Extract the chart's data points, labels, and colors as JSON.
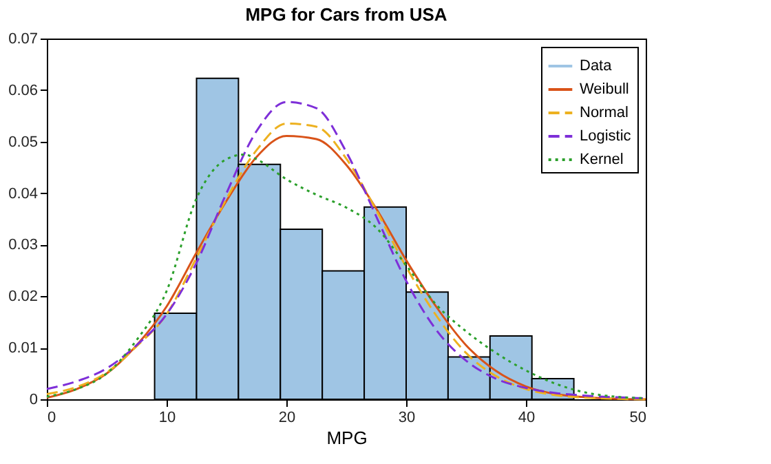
{
  "chart_data": {
    "type": "histogram",
    "title": "MPG for Cars from USA",
    "xlabel": "MPG",
    "xlim": [
      0,
      50
    ],
    "xticks": [
      0,
      10,
      20,
      30,
      40,
      50
    ],
    "ylim": [
      0,
      0.07
    ],
    "yticks": [
      0,
      0.01,
      0.02,
      0.03,
      0.04,
      0.05,
      0.06,
      0.07
    ],
    "grid": false,
    "legend": "top right",
    "series": [
      {
        "name": "Data",
        "color": "#9fc5e4",
        "bins": [
          9,
          12.5,
          16,
          19.5,
          23,
          26.5,
          30,
          33.5,
          37,
          40.5,
          44
        ],
        "values": [
          0.0167,
          0.0623,
          0.0456,
          0.033,
          0.0249,
          0.0373,
          0.0208,
          0.0082,
          0.0123,
          0.004
        ]
      },
      {
        "name": "Weibull",
        "type": "line",
        "color": "#d95319",
        "line_style": "solid",
        "x": [
          0,
          2.5,
          5,
          7.5,
          10,
          12.5,
          15,
          17.5,
          20,
          22.5,
          25,
          27.5,
          30,
          32.5,
          35,
          37.5,
          40,
          42.5,
          45,
          47.5,
          50
        ],
        "values": [
          0.0003,
          0.002,
          0.005,
          0.0105,
          0.018,
          0.0285,
          0.0385,
          0.047,
          0.0511,
          0.0505,
          0.0455,
          0.037,
          0.027,
          0.018,
          0.0105,
          0.0055,
          0.0025,
          0.001,
          0.0004,
          0.0001,
          0
        ]
      },
      {
        "name": "Normal",
        "type": "line",
        "color": "#edb120",
        "line_style": "dashed",
        "x": [
          0,
          2.5,
          5,
          7.5,
          10,
          12.5,
          15,
          17.5,
          20,
          22.5,
          25,
          27.5,
          30,
          32.5,
          35,
          37.5,
          40,
          42.5,
          45,
          47.5,
          50
        ],
        "values": [
          0.001,
          0.0024,
          0.0052,
          0.0103,
          0.0165,
          0.0275,
          0.0389,
          0.0483,
          0.0535,
          0.0529,
          0.0467,
          0.0367,
          0.0257,
          0.0163,
          0.009,
          0.0045,
          0.002,
          0.0008,
          0.0003,
          0.0001,
          0
        ]
      },
      {
        "name": "Logistic",
        "type": "line",
        "color": "#7e2fd8",
        "line_style": "dashed",
        "x": [
          0,
          2.5,
          5,
          7.5,
          10,
          12.5,
          15,
          17.5,
          20,
          22.5,
          25,
          27.5,
          30,
          32.5,
          35,
          37.5,
          40,
          42.5,
          45,
          47.5,
          50
        ],
        "values": [
          0.002,
          0.0035,
          0.006,
          0.0105,
          0.0165,
          0.0265,
          0.04,
          0.052,
          0.0577,
          0.0565,
          0.048,
          0.0355,
          0.023,
          0.0135,
          0.0075,
          0.004,
          0.0022,
          0.0012,
          0.0007,
          0.0004,
          0.0002
        ]
      },
      {
        "name": "Kernel",
        "type": "line",
        "color": "#2ca02c",
        "line_style": "dotted",
        "x": [
          0,
          2.5,
          5,
          7.5,
          10,
          12.5,
          15,
          16.5,
          17.5,
          20,
          22.5,
          25,
          27.5,
          30,
          32.5,
          35,
          37.5,
          40,
          42.5,
          45,
          47.5,
          50
        ],
        "values": [
          0.0005,
          0.002,
          0.005,
          0.0115,
          0.021,
          0.039,
          0.0466,
          0.0475,
          0.0466,
          0.0427,
          0.0397,
          0.0372,
          0.0333,
          0.026,
          0.0184,
          0.0132,
          0.009,
          0.0056,
          0.003,
          0.0013,
          0.0005,
          0.0002
        ]
      }
    ]
  }
}
